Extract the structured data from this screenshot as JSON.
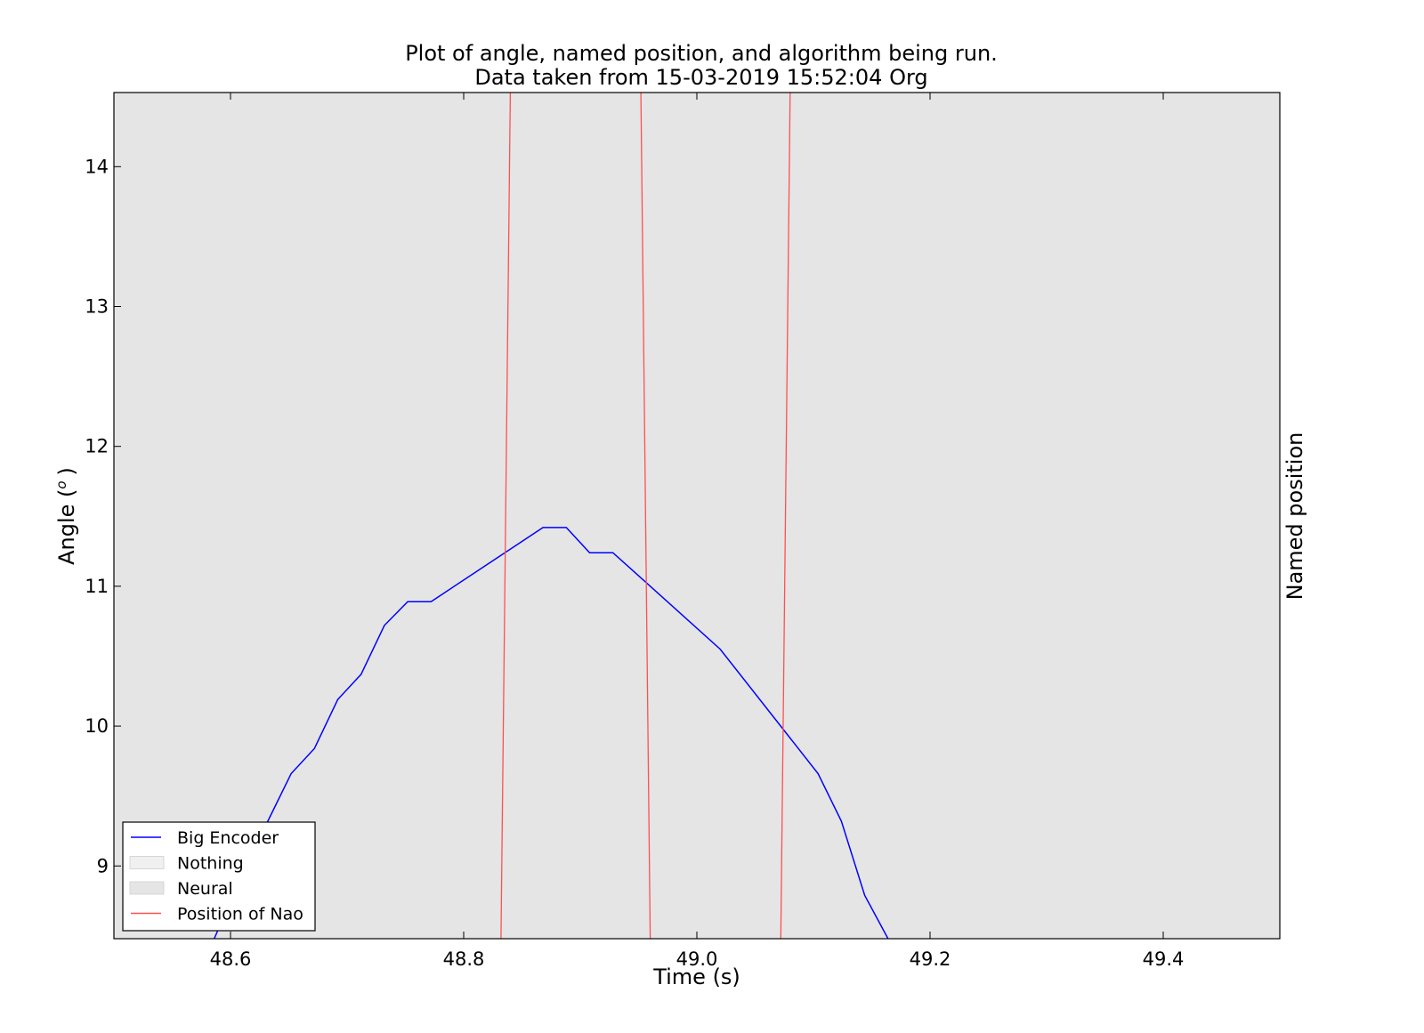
{
  "chart_data": {
    "type": "line",
    "title": "Plot of angle, named position, and algorithm being run.",
    "subtitle": "Data taken from 15-03-2019 15:52:04 Org",
    "xlabel": "Time (s)",
    "ylabel": "Angle (",
    "ylabel_sup": "o",
    "ylabel_close": ")",
    "y2label": "Named position",
    "xlim": [
      48.5,
      49.5
    ],
    "ylim": [
      8.48,
      14.53
    ],
    "xticks": [
      48.6,
      48.8,
      49.0,
      49.2,
      49.4
    ],
    "xtick_labels": [
      "48.6",
      "48.8",
      "49.0",
      "49.2",
      "49.4"
    ],
    "yticks": [
      9,
      10,
      11,
      12,
      13,
      14
    ],
    "ytick_labels": [
      "9",
      "10",
      "11",
      "12",
      "13",
      "14"
    ],
    "background": "#e5e5e5",
    "legend_position": "lower-left",
    "series": [
      {
        "name": "Big Encoder",
        "color": "#0000ff",
        "x": [
          48.586,
          48.612,
          48.632,
          48.652,
          48.672,
          48.692,
          48.712,
          48.732,
          48.752,
          48.772,
          48.868,
          48.888,
          48.908,
          48.928,
          49.02,
          49.104,
          49.124,
          49.144,
          49.164
        ],
        "y": [
          8.48,
          8.98,
          9.32,
          9.66,
          9.84,
          10.19,
          10.37,
          10.72,
          10.89,
          10.89,
          11.42,
          11.42,
          11.24,
          11.24,
          10.55,
          9.66,
          9.32,
          8.79,
          8.48
        ]
      },
      {
        "name": "Position of Nao",
        "color": "#ff5050",
        "segments": [
          {
            "x": [
              48.832,
              48.84
            ],
            "y": [
              8.48,
              14.53
            ]
          },
          {
            "x": [
              48.952,
              48.96
            ],
            "y": [
              14.53,
              8.48
            ]
          },
          {
            "x": [
              49.072,
              49.08
            ],
            "y": [
              8.48,
              14.53
            ]
          }
        ]
      }
    ],
    "legend": [
      {
        "label": "Big Encoder",
        "kind": "line",
        "color": "#0000ff"
      },
      {
        "label": "Nothing",
        "kind": "patch",
        "color": "#f0f0f0"
      },
      {
        "label": "Neural",
        "kind": "patch",
        "color": "#e5e5e5"
      },
      {
        "label": "Position of Nao",
        "kind": "line",
        "color": "#ff5050"
      }
    ]
  }
}
